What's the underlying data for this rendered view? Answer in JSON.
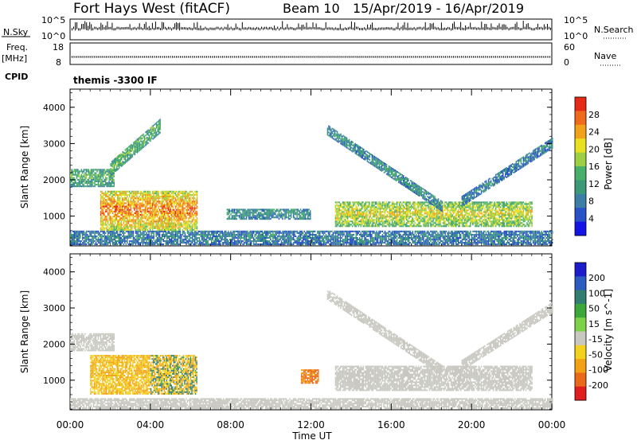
{
  "header": {
    "station": "Fort Hays West (fitACF)",
    "beam": "Beam 10",
    "dates": "15/Apr/2019 - 16/Apr/2019"
  },
  "top_panels": {
    "nsky_label": "N.Sky",
    "nsky_ticks": [
      "10^5",
      "10^0"
    ],
    "nsearch_label": "N.Search",
    "nsearch_ticks": [
      "10^5",
      "10^0"
    ],
    "freq_label_1": "Freq.",
    "freq_label_2": "[MHz]",
    "freq_ticks": [
      "18",
      "8"
    ],
    "nave_label": "Nave",
    "nave_ticks": [
      "60",
      "0"
    ],
    "cpid_label": "CPID",
    "cpid_value": "themis -3300 IF"
  },
  "power_colorbar": {
    "title": "Power [dB]",
    "ticks": [
      "28",
      "24",
      "20",
      "16",
      "12",
      "8",
      "4"
    ],
    "colors": [
      "#1414e6",
      "#2a52c8",
      "#3c7ea6",
      "#3d9a78",
      "#48b06a",
      "#9ccf44",
      "#e8e020",
      "#f2a21a",
      "#ef6a1a",
      "#e52a18"
    ]
  },
  "velocity_colorbar": {
    "title": "Velocity [m s^-1]",
    "ticks": [
      "200",
      "100",
      "50",
      "15",
      "-15",
      "-50",
      "-100",
      "-200"
    ],
    "colors": [
      "#1c1ccc",
      "#2c5cc0",
      "#327e70",
      "#3ca83c",
      "#7ed24a",
      "#c8c8c0",
      "#f2d21e",
      "#f2a212",
      "#ea6a1a",
      "#e01e1e"
    ]
  },
  "chart_data": [
    {
      "type": "heatmap",
      "title": "",
      "xlabel": "Time UT",
      "ylabel": "Slant Range [km]",
      "x_ticks": [
        "00:00",
        "04:00",
        "08:00",
        "12:00",
        "16:00",
        "20:00",
        "00:00"
      ],
      "y_ticks": [
        "1000",
        "2000",
        "3000",
        "4000"
      ],
      "xlim_hours": [
        0,
        24
      ],
      "ylim_km": [
        180,
        4500
      ],
      "colorbar": "Power [dB]",
      "echo_regions": [
        {
          "name": "E-region / ground clutter band",
          "t_start": 0.0,
          "t_end": 24.0,
          "range_km": [
            200,
            600
          ],
          "power_db": 8
        },
        {
          "name": "far band (2000-2300 km) early hours",
          "t_start": 0.0,
          "t_end": 2.2,
          "range_km": [
            1800,
            2300
          ],
          "power_db": 14
        },
        {
          "name": "rising slant echo",
          "t_start": 2.0,
          "t_end": 4.5,
          "range_km": [
            2300,
            3500
          ],
          "power_db": 14
        },
        {
          "name": "strong near-range patch",
          "t_start": 1.5,
          "t_end": 6.3,
          "range_km": [
            600,
            1700
          ],
          "power_db": 26
        },
        {
          "name": "isolated patches",
          "t_start": 7.8,
          "t_end": 12.0,
          "range_km": [
            900,
            1200
          ],
          "power_db": 10
        },
        {
          "name": "evening echo band",
          "t_start": 13.2,
          "t_end": 23.0,
          "range_km": [
            700,
            1400
          ],
          "power_db": 20
        },
        {
          "name": "descending arc",
          "t_start": 12.8,
          "t_end": 18.5,
          "range_km": [
            1300,
            3400
          ],
          "power_db": 10
        },
        {
          "name": "ascending arc",
          "t_start": 19.5,
          "t_end": 24.0,
          "range_km": [
            1400,
            3000
          ],
          "power_db": 8
        }
      ]
    },
    {
      "type": "heatmap",
      "title": "",
      "xlabel": "Time UT",
      "ylabel": "Slant Range [km]",
      "x_ticks": [
        "00:00",
        "04:00",
        "08:00",
        "12:00",
        "16:00",
        "20:00",
        "00:00"
      ],
      "y_ticks": [
        "1000",
        "2000",
        "3000",
        "4000"
      ],
      "xlim_hours": [
        0,
        24
      ],
      "ylim_km": [
        180,
        4500
      ],
      "colorbar": "Velocity [m s^-1]",
      "echo_regions": [
        {
          "name": "ground scatter band",
          "t_start": 0.0,
          "t_end": 24.0,
          "range_km": [
            200,
            500
          ],
          "velocity": 0
        },
        {
          "name": "far band early hours",
          "t_start": 0.0,
          "t_end": 2.2,
          "range_km": [
            1800,
            2300
          ],
          "velocity": 0
        },
        {
          "name": "near-range patch",
          "t_start": 1.0,
          "t_end": 6.3,
          "range_km": [
            600,
            1700
          ],
          "velocity": -30
        },
        {
          "name": "orange patch near noon",
          "t_start": 11.5,
          "t_end": 12.4,
          "range_km": [
            900,
            1300
          ],
          "velocity": -80
        },
        {
          "name": "evening band",
          "t_start": 13.2,
          "t_end": 23.0,
          "range_km": [
            700,
            1400
          ],
          "velocity": 0
        },
        {
          "name": "descending arc",
          "t_start": 12.8,
          "t_end": 18.5,
          "range_km": [
            1300,
            3400
          ],
          "velocity": 0
        },
        {
          "name": "ascending arc",
          "t_start": 19.5,
          "t_end": 24.0,
          "range_km": [
            1400,
            3000
          ],
          "velocity": 0
        }
      ]
    }
  ]
}
